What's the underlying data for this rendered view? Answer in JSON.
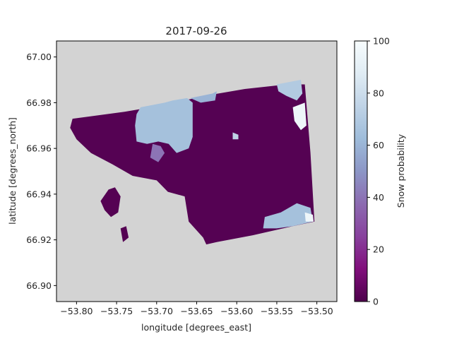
{
  "chart_data": {
    "type": "heatmap",
    "title": "2017-09-26",
    "xlabel": "longitude [degrees_east]",
    "ylabel": "latitude [degrees_north]",
    "xlim": [
      -53.825,
      -53.475
    ],
    "ylim": [
      66.893,
      67.007
    ],
    "xticks": [
      -53.8,
      -53.75,
      -53.7,
      -53.65,
      -53.6,
      -53.55,
      -53.5
    ],
    "xtick_labels": [
      "−53.80",
      "−53.75",
      "−53.70",
      "−53.65",
      "−53.60",
      "−53.55",
      "−53.50"
    ],
    "yticks": [
      66.9,
      66.92,
      66.94,
      66.96,
      66.98,
      67.0
    ],
    "ytick_labels": [
      "66.90",
      "66.92",
      "66.94",
      "66.96",
      "66.98",
      "67.00"
    ],
    "background_color": "#d3d3d3",
    "colorbar": {
      "label": "Snow probability",
      "min": 0,
      "max": 100,
      "ticks": [
        0,
        20,
        40,
        60,
        80,
        100
      ],
      "colormap": "BuPu_r",
      "stops": [
        "#4d004b",
        "#810f7c",
        "#88419d",
        "#8c6bb1",
        "#8c96c6",
        "#9ebcda",
        "#bfd3e6",
        "#e0ecf4",
        "#f7fcfd"
      ]
    },
    "regions": [
      {
        "kind": "land",
        "value": 2,
        "points": [
          [
            -53.805,
            66.973
          ],
          [
            -53.74,
            66.976
          ],
          [
            -53.69,
            66.979
          ],
          [
            -53.64,
            66.983
          ],
          [
            -53.59,
            66.986
          ],
          [
            -53.538,
            66.988
          ],
          [
            -53.515,
            66.988
          ],
          [
            -53.508,
            66.958
          ],
          [
            -53.503,
            66.928
          ],
          [
            -53.53,
            66.926
          ],
          [
            -53.58,
            66.922
          ],
          [
            -53.625,
            66.919
          ],
          [
            -53.638,
            66.918
          ],
          [
            -53.642,
            66.921
          ],
          [
            -53.66,
            66.928
          ],
          [
            -53.665,
            66.939
          ],
          [
            -53.686,
            66.941
          ],
          [
            -53.7,
            66.946
          ],
          [
            -53.73,
            66.948
          ],
          [
            -53.755,
            66.953
          ],
          [
            -53.782,
            66.958
          ],
          [
            -53.8,
            66.964
          ],
          [
            -53.808,
            66.969
          ]
        ]
      },
      {
        "kind": "land",
        "value": 2,
        "points": [
          [
            -53.76,
            66.942
          ],
          [
            -53.752,
            66.943
          ],
          [
            -53.745,
            66.939
          ],
          [
            -53.748,
            66.932
          ],
          [
            -53.757,
            66.93
          ],
          [
            -53.765,
            66.933
          ],
          [
            -53.77,
            66.937
          ]
        ]
      },
      {
        "kind": "land",
        "value": 2,
        "points": [
          [
            -53.745,
            66.925
          ],
          [
            -53.738,
            66.926
          ],
          [
            -53.735,
            66.921
          ],
          [
            -53.742,
            66.919
          ]
        ]
      },
      {
        "kind": "snow",
        "value": 65,
        "points": [
          [
            -53.725,
            66.975
          ],
          [
            -53.72,
            66.978
          ],
          [
            -53.705,
            66.979
          ],
          [
            -53.69,
            66.98
          ],
          [
            -53.68,
            66.981
          ],
          [
            -53.662,
            66.982
          ],
          [
            -53.655,
            66.98
          ],
          [
            -53.655,
            66.965
          ],
          [
            -53.66,
            66.96
          ],
          [
            -53.675,
            66.958
          ],
          [
            -53.685,
            66.962
          ],
          [
            -53.698,
            66.963
          ],
          [
            -53.712,
            66.962
          ],
          [
            -53.725,
            66.963
          ],
          [
            -53.727,
            66.97
          ]
        ]
      },
      {
        "kind": "snow",
        "value": 60,
        "points": [
          [
            -53.658,
            66.982
          ],
          [
            -53.63,
            66.984
          ],
          [
            -53.625,
            66.985
          ],
          [
            -53.627,
            66.981
          ],
          [
            -53.645,
            66.98
          ]
        ]
      },
      {
        "kind": "snow",
        "value": 40,
        "points": [
          [
            -53.705,
            66.962
          ],
          [
            -53.695,
            66.961
          ],
          [
            -53.69,
            66.958
          ],
          [
            -53.698,
            66.954
          ],
          [
            -53.708,
            66.956
          ]
        ]
      },
      {
        "kind": "snow",
        "value": 70,
        "points": [
          [
            -53.55,
            66.988
          ],
          [
            -53.535,
            66.989
          ],
          [
            -53.52,
            66.99
          ],
          [
            -53.518,
            66.984
          ],
          [
            -53.525,
            66.981
          ],
          [
            -53.538,
            66.983
          ],
          [
            -53.548,
            66.985
          ]
        ]
      },
      {
        "kind": "snow",
        "value": 95,
        "points": [
          [
            -53.53,
            66.978
          ],
          [
            -53.515,
            66.98
          ],
          [
            -53.513,
            66.97
          ],
          [
            -53.52,
            66.968
          ],
          [
            -53.528,
            66.972
          ]
        ]
      },
      {
        "kind": "snow",
        "value": 65,
        "points": [
          [
            -53.565,
            66.93
          ],
          [
            -53.545,
            66.932
          ],
          [
            -53.525,
            66.936
          ],
          [
            -53.508,
            66.934
          ],
          [
            -53.505,
            66.928
          ],
          [
            -53.53,
            66.926
          ],
          [
            -53.55,
            66.925
          ],
          [
            -53.567,
            66.925
          ]
        ]
      },
      {
        "kind": "snow",
        "value": 95,
        "points": [
          [
            -53.515,
            66.932
          ],
          [
            -53.505,
            66.931
          ],
          [
            -53.504,
            66.928
          ],
          [
            -53.514,
            66.928
          ]
        ]
      },
      {
        "kind": "snow",
        "value": 75,
        "points": [
          [
            -53.605,
            66.967
          ],
          [
            -53.598,
            66.966
          ],
          [
            -53.598,
            66.964
          ],
          [
            -53.605,
            66.964
          ]
        ]
      }
    ]
  }
}
